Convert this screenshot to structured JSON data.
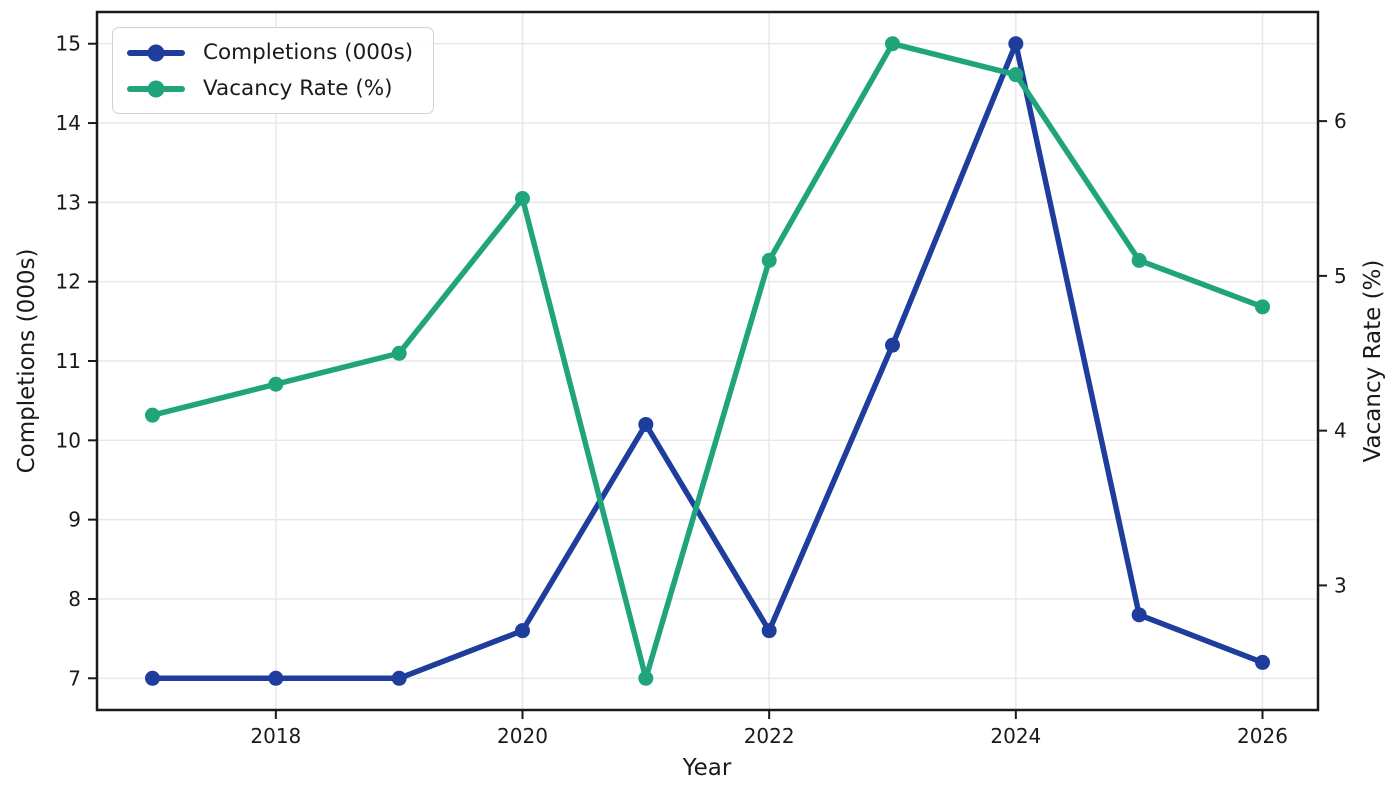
{
  "chart_data": {
    "type": "line",
    "title": "",
    "xlabel": "Year",
    "ylabel_left": "Completions (000s)",
    "ylabel_right": "Vacancy Rate (%)",
    "x": [
      2017,
      2018,
      2019,
      2020,
      2021,
      2022,
      2023,
      2024,
      2025,
      2026
    ],
    "series": [
      {
        "name": "Completions (000s)",
        "axis": "left",
        "color": "#1e3d9c",
        "values": [
          7.0,
          7.0,
          7.0,
          7.6,
          10.2,
          7.6,
          11.2,
          15.0,
          7.8,
          7.2
        ]
      },
      {
        "name": "Vacancy Rate (%)",
        "axis": "right",
        "color": "#1fa47b",
        "values": [
          4.1,
          4.3,
          4.5,
          5.5,
          2.4,
          5.1,
          6.5,
          6.3,
          5.1,
          4.8
        ]
      }
    ],
    "x_ticks": [
      2018,
      2020,
      2022,
      2024,
      2026
    ],
    "left_ticks": [
      7,
      8,
      9,
      10,
      11,
      12,
      13,
      14,
      15
    ],
    "right_ticks": [
      3,
      4,
      5,
      6
    ],
    "x_lim": [
      2016.55,
      2026.45
    ],
    "left_lim": [
      6.6,
      15.4
    ],
    "right_lim": [
      2.195,
      6.705
    ],
    "grid": true,
    "legend_position": "upper-left",
    "colors": {
      "completions": "#1e3d9c",
      "vacancy": "#1fa47b",
      "grid": "#e7e7e7",
      "spine": "#1a1a1a",
      "background": "#ffffff"
    }
  }
}
